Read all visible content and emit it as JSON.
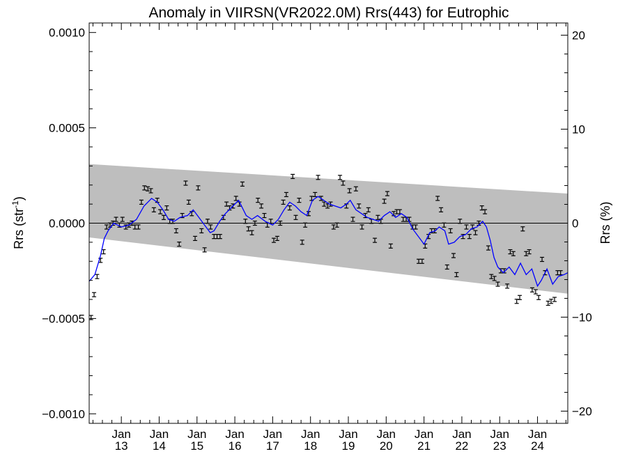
{
  "chart_data": {
    "type": "scatter",
    "title": "Anomaly in VIIRSN(VR2022.0M) Rrs(443) for Eutrophic",
    "ylabel_left": {
      "base": "Rrs (str",
      "sup": "-1",
      "close": ")"
    },
    "ylabel_right": "Rrs (%)",
    "xlim": [
      2012.15,
      2024.8
    ],
    "ylim": [
      -0.00105,
      0.00105
    ],
    "ylim_right": [
      -21.3,
      21.3
    ],
    "x_ticks": [
      {
        "x": 2013.0,
        "month": "Jan",
        "year": "13"
      },
      {
        "x": 2014.0,
        "month": "Jan",
        "year": "14"
      },
      {
        "x": 2015.0,
        "month": "Jan",
        "year": "15"
      },
      {
        "x": 2016.0,
        "month": "Jan",
        "year": "16"
      },
      {
        "x": 2017.0,
        "month": "Jan",
        "year": "17"
      },
      {
        "x": 2018.0,
        "month": "Jan",
        "year": "18"
      },
      {
        "x": 2019.0,
        "month": "Jan",
        "year": "19"
      },
      {
        "x": 2020.0,
        "month": "Jan",
        "year": "20"
      },
      {
        "x": 2021.0,
        "month": "Jan",
        "year": "21"
      },
      {
        "x": 2022.0,
        "month": "Jan",
        "year": "22"
      },
      {
        "x": 2023.0,
        "month": "Jan",
        "year": "23"
      },
      {
        "x": 2024.0,
        "month": "Jan",
        "year": "24"
      }
    ],
    "y_ticks_left": [
      {
        "value": 0.001,
        "label": "0.0010"
      },
      {
        "value": 0.0005,
        "label": "0.0005"
      },
      {
        "value": 0.0,
        "label": "0.0000"
      },
      {
        "value": -0.0005,
        "label": "−0.0005"
      },
      {
        "value": -0.001,
        "label": "−0.0010"
      }
    ],
    "y_ticks_right": [
      {
        "value": 20,
        "label": "20"
      },
      {
        "value": 10,
        "label": "10"
      },
      {
        "value": 0,
        "label": "0"
      },
      {
        "value": -10,
        "label": "−10"
      },
      {
        "value": -20,
        "label": "−20"
      }
    ],
    "colors": {
      "band": "#bebebe",
      "line": "#0000ff",
      "points": "#000000",
      "zero": "#000000"
    },
    "band": {
      "x": [
        2012.15,
        2024.8
      ],
      "upper": [
        0.00031,
        0.000155
      ],
      "lower": [
        -7.5e-05,
        -0.00037
      ]
    },
    "zero_line": 0.0,
    "points": [
      {
        "x": 2012.2,
        "y": -0.000495
      },
      {
        "x": 2012.28,
        "y": -0.000375
      },
      {
        "x": 2012.36,
        "y": -0.00028
      },
      {
        "x": 2012.45,
        "y": -0.000195
      },
      {
        "x": 2012.53,
        "y": -0.00015
      },
      {
        "x": 2012.61,
        "y": -2e-05
      },
      {
        "x": 2012.7,
        "y": -1e-05
      },
      {
        "x": 2012.78,
        "y": 0.0
      },
      {
        "x": 2012.86,
        "y": 2e-05
      },
      {
        "x": 2012.95,
        "y": -1e-05
      },
      {
        "x": 2013.03,
        "y": 2e-05
      },
      {
        "x": 2013.12,
        "y": -2e-05
      },
      {
        "x": 2013.2,
        "y": -1e-05
      },
      {
        "x": 2013.28,
        "y": 0.0
      },
      {
        "x": 2013.36,
        "y": -2e-05
      },
      {
        "x": 2013.45,
        "y": -2e-05
      },
      {
        "x": 2013.53,
        "y": 0.00011
      },
      {
        "x": 2013.61,
        "y": 0.000185
      },
      {
        "x": 2013.7,
        "y": 0.00018
      },
      {
        "x": 2013.78,
        "y": 0.00017
      },
      {
        "x": 2013.86,
        "y": 7e-05
      },
      {
        "x": 2013.95,
        "y": 0.00012
      },
      {
        "x": 2014.03,
        "y": 6e-05
      },
      {
        "x": 2014.12,
        "y": 3e-05
      },
      {
        "x": 2014.2,
        "y": 8e-05
      },
      {
        "x": 2014.28,
        "y": 1e-05
      },
      {
        "x": 2014.36,
        "y": 1e-05
      },
      {
        "x": 2014.45,
        "y": -4e-05
      },
      {
        "x": 2014.53,
        "y": -0.00011
      },
      {
        "x": 2014.61,
        "y": 4e-05
      },
      {
        "x": 2014.7,
        "y": 0.00021
      },
      {
        "x": 2014.78,
        "y": 0.00011
      },
      {
        "x": 2014.86,
        "y": 5e-05
      },
      {
        "x": 2014.95,
        "y": -8e-05
      },
      {
        "x": 2015.03,
        "y": 0.000185
      },
      {
        "x": 2015.12,
        "y": -4e-05
      },
      {
        "x": 2015.2,
        "y": -0.00014
      },
      {
        "x": 2015.28,
        "y": 1e-05
      },
      {
        "x": 2015.36,
        "y": -2e-05
      },
      {
        "x": 2015.45,
        "y": -7e-05
      },
      {
        "x": 2015.53,
        "y": -7e-05
      },
      {
        "x": 2015.61,
        "y": -7e-05
      },
      {
        "x": 2015.7,
        "y": 3e-05
      },
      {
        "x": 2015.78,
        "y": 0.0001
      },
      {
        "x": 2015.86,
        "y": 8e-05
      },
      {
        "x": 2015.95,
        "y": 9e-05
      },
      {
        "x": 2016.03,
        "y": 0.00013
      },
      {
        "x": 2016.12,
        "y": 0.0001
      },
      {
        "x": 2016.2,
        "y": 0.000205
      },
      {
        "x": 2016.28,
        "y": 1e-05
      },
      {
        "x": 2016.36,
        "y": -3e-05
      },
      {
        "x": 2016.45,
        "y": -5e-05
      },
      {
        "x": 2016.53,
        "y": 0.0
      },
      {
        "x": 2016.61,
        "y": 0.00012
      },
      {
        "x": 2016.7,
        "y": 9e-05
      },
      {
        "x": 2016.78,
        "y": 4e-05
      },
      {
        "x": 2016.86,
        "y": -1e-05
      },
      {
        "x": 2016.95,
        "y": 1e-05
      },
      {
        "x": 2017.03,
        "y": -9e-05
      },
      {
        "x": 2017.12,
        "y": -8e-05
      },
      {
        "x": 2017.2,
        "y": 0.0
      },
      {
        "x": 2017.28,
        "y": 0.00011
      },
      {
        "x": 2017.36,
        "y": 0.00015
      },
      {
        "x": 2017.45,
        "y": 8e-05
      },
      {
        "x": 2017.53,
        "y": 0.000245
      },
      {
        "x": 2017.61,
        "y": 3e-05
      },
      {
        "x": 2017.7,
        "y": 0.00012
      },
      {
        "x": 2017.78,
        "y": -0.0001
      },
      {
        "x": 2017.86,
        "y": -1e-05
      },
      {
        "x": 2017.95,
        "y": 5e-05
      },
      {
        "x": 2018.03,
        "y": 0.00013
      },
      {
        "x": 2018.12,
        "y": 0.00015
      },
      {
        "x": 2018.2,
        "y": 0.00024
      },
      {
        "x": 2018.28,
        "y": 0.00013
      },
      {
        "x": 2018.36,
        "y": 0.0001
      },
      {
        "x": 2018.45,
        "y": 9e-05
      },
      {
        "x": 2018.53,
        "y": 0.0001
      },
      {
        "x": 2018.61,
        "y": -2e-05
      },
      {
        "x": 2018.7,
        "y": -1e-05
      },
      {
        "x": 2018.78,
        "y": 0.00024
      },
      {
        "x": 2018.86,
        "y": 0.00021
      },
      {
        "x": 2018.95,
        "y": 9e-05
      },
      {
        "x": 2019.03,
        "y": 0.00017
      },
      {
        "x": 2019.12,
        "y": 2e-05
      },
      {
        "x": 2019.2,
        "y": 0.00018
      },
      {
        "x": 2019.28,
        "y": 9e-05
      },
      {
        "x": 2019.36,
        "y": -2e-05
      },
      {
        "x": 2019.45,
        "y": 4e-05
      },
      {
        "x": 2019.53,
        "y": 7e-05
      },
      {
        "x": 2019.61,
        "y": 1e-05
      },
      {
        "x": 2019.7,
        "y": -9e-05
      },
      {
        "x": 2019.78,
        "y": 3e-05
      },
      {
        "x": 2019.86,
        "y": 1e-05
      },
      {
        "x": 2019.95,
        "y": 0.000115
      },
      {
        "x": 2020.03,
        "y": 0.000155
      },
      {
        "x": 2020.12,
        "y": -0.00012
      },
      {
        "x": 2020.2,
        "y": 5e-05
      },
      {
        "x": 2020.28,
        "y": 6e-05
      },
      {
        "x": 2020.36,
        "y": 6e-05
      },
      {
        "x": 2020.45,
        "y": 2e-05
      },
      {
        "x": 2020.53,
        "y": 2e-05
      },
      {
        "x": 2020.61,
        "y": 2e-05
      },
      {
        "x": 2020.7,
        "y": -2e-05
      },
      {
        "x": 2020.78,
        "y": -2e-05
      },
      {
        "x": 2020.86,
        "y": -0.0002
      },
      {
        "x": 2020.95,
        "y": -0.0002
      },
      {
        "x": 2021.03,
        "y": -0.00012
      },
      {
        "x": 2021.12,
        "y": -7e-05
      },
      {
        "x": 2021.2,
        "y": -4e-05
      },
      {
        "x": 2021.28,
        "y": -4e-05
      },
      {
        "x": 2021.36,
        "y": 0.00013
      },
      {
        "x": 2021.45,
        "y": 7e-05
      },
      {
        "x": 2021.53,
        "y": -1e-05
      },
      {
        "x": 2021.61,
        "y": -0.00023
      },
      {
        "x": 2021.7,
        "y": -4e-05
      },
      {
        "x": 2021.78,
        "y": -0.00017
      },
      {
        "x": 2021.86,
        "y": -0.00027
      },
      {
        "x": 2021.95,
        "y": 1e-05
      },
      {
        "x": 2022.03,
        "y": -7e-05
      },
      {
        "x": 2022.12,
        "y": -2e-05
      },
      {
        "x": 2022.2,
        "y": -7e-05
      },
      {
        "x": 2022.28,
        "y": -2e-05
      },
      {
        "x": 2022.36,
        "y": -5e-05
      },
      {
        "x": 2022.45,
        "y": 0.0
      },
      {
        "x": 2022.53,
        "y": 8e-05
      },
      {
        "x": 2022.61,
        "y": 6e-05
      },
      {
        "x": 2022.7,
        "y": -0.00013
      },
      {
        "x": 2022.78,
        "y": -0.00028
      },
      {
        "x": 2022.86,
        "y": -0.00029
      },
      {
        "x": 2022.95,
        "y": -0.00032
      },
      {
        "x": 2023.03,
        "y": -0.00025
      },
      {
        "x": 2023.12,
        "y": -0.00025
      },
      {
        "x": 2023.2,
        "y": -0.00033
      },
      {
        "x": 2023.28,
        "y": -0.00015
      },
      {
        "x": 2023.36,
        "y": -0.00016
      },
      {
        "x": 2023.45,
        "y": -0.00041
      },
      {
        "x": 2023.53,
        "y": -0.00039
      },
      {
        "x": 2023.61,
        "y": -3e-05
      },
      {
        "x": 2023.7,
        "y": -0.00016
      },
      {
        "x": 2023.78,
        "y": -0.00015
      },
      {
        "x": 2023.86,
        "y": -0.00035
      },
      {
        "x": 2023.95,
        "y": -0.00036
      },
      {
        "x": 2024.03,
        "y": -0.00039
      },
      {
        "x": 2024.12,
        "y": -0.00019
      },
      {
        "x": 2024.2,
        "y": -0.00026
      },
      {
        "x": 2024.28,
        "y": -0.00042
      },
      {
        "x": 2024.36,
        "y": -0.00041
      },
      {
        "x": 2024.45,
        "y": -0.0004
      },
      {
        "x": 2024.53,
        "y": -0.00026
      },
      {
        "x": 2024.61,
        "y": -0.00026
      }
    ],
    "smooth_line": [
      {
        "x": 2012.15,
        "y": -0.000305
      },
      {
        "x": 2012.3,
        "y": -0.00027
      },
      {
        "x": 2012.45,
        "y": -0.00017
      },
      {
        "x": 2012.55,
        "y": -8e-05
      },
      {
        "x": 2012.65,
        "y": -4e-05
      },
      {
        "x": 2012.8,
        "y": 0.0
      },
      {
        "x": 2013.0,
        "y": -2e-05
      },
      {
        "x": 2013.2,
        "y": -1e-05
      },
      {
        "x": 2013.4,
        "y": 2e-05
      },
      {
        "x": 2013.6,
        "y": 9e-05
      },
      {
        "x": 2013.8,
        "y": 0.00013
      },
      {
        "x": 2013.95,
        "y": 0.00011
      },
      {
        "x": 2014.1,
        "y": 7e-05
      },
      {
        "x": 2014.25,
        "y": 2e-05
      },
      {
        "x": 2014.4,
        "y": 1e-05
      },
      {
        "x": 2014.55,
        "y": 3e-05
      },
      {
        "x": 2014.75,
        "y": 4e-05
      },
      {
        "x": 2014.9,
        "y": 7e-05
      },
      {
        "x": 2015.05,
        "y": 3e-05
      },
      {
        "x": 2015.2,
        "y": -1e-05
      },
      {
        "x": 2015.35,
        "y": -5e-05
      },
      {
        "x": 2015.45,
        "y": -4e-05
      },
      {
        "x": 2015.6,
        "y": 1e-05
      },
      {
        "x": 2015.75,
        "y": 5e-05
      },
      {
        "x": 2015.95,
        "y": 9e-05
      },
      {
        "x": 2016.1,
        "y": 0.00012
      },
      {
        "x": 2016.3,
        "y": 4e-05
      },
      {
        "x": 2016.45,
        "y": 2e-05
      },
      {
        "x": 2016.6,
        "y": 4e-05
      },
      {
        "x": 2016.8,
        "y": 1e-05
      },
      {
        "x": 2017.0,
        "y": -1e-05
      },
      {
        "x": 2017.15,
        "y": 2e-05
      },
      {
        "x": 2017.3,
        "y": 7e-05
      },
      {
        "x": 2017.45,
        "y": 0.00011
      },
      {
        "x": 2017.6,
        "y": 9e-05
      },
      {
        "x": 2017.75,
        "y": 6e-05
      },
      {
        "x": 2017.9,
        "y": 4e-05
      },
      {
        "x": 2018.05,
        "y": 0.00012
      },
      {
        "x": 2018.2,
        "y": 0.00014
      },
      {
        "x": 2018.35,
        "y": 0.00012
      },
      {
        "x": 2018.5,
        "y": 0.0001
      },
      {
        "x": 2018.65,
        "y": 9e-05
      },
      {
        "x": 2018.8,
        "y": 8e-05
      },
      {
        "x": 2018.95,
        "y": 0.0001
      },
      {
        "x": 2019.05,
        "y": 0.00012
      },
      {
        "x": 2019.2,
        "y": 7e-05
      },
      {
        "x": 2019.35,
        "y": 5e-05
      },
      {
        "x": 2019.5,
        "y": 3e-05
      },
      {
        "x": 2019.65,
        "y": 2e-05
      },
      {
        "x": 2019.8,
        "y": 1e-05
      },
      {
        "x": 2019.95,
        "y": 4e-05
      },
      {
        "x": 2020.1,
        "y": 6e-05
      },
      {
        "x": 2020.25,
        "y": 3e-05
      },
      {
        "x": 2020.4,
        "y": 5e-05
      },
      {
        "x": 2020.55,
        "y": 3e-05
      },
      {
        "x": 2020.7,
        "y": -3e-05
      },
      {
        "x": 2020.85,
        "y": -7e-05
      },
      {
        "x": 2021.0,
        "y": -0.00011
      },
      {
        "x": 2021.15,
        "y": -5e-05
      },
      {
        "x": 2021.3,
        "y": -4e-05
      },
      {
        "x": 2021.4,
        "y": -2e-05
      },
      {
        "x": 2021.55,
        "y": -4e-05
      },
      {
        "x": 2021.65,
        "y": -0.00011
      },
      {
        "x": 2021.8,
        "y": -0.0001
      },
      {
        "x": 2021.95,
        "y": -7e-05
      },
      {
        "x": 2022.1,
        "y": -6e-05
      },
      {
        "x": 2022.25,
        "y": -3e-05
      },
      {
        "x": 2022.4,
        "y": -2e-05
      },
      {
        "x": 2022.55,
        "y": 1e-05
      },
      {
        "x": 2022.65,
        "y": -2e-05
      },
      {
        "x": 2022.75,
        "y": -9e-05
      },
      {
        "x": 2022.85,
        "y": -0.00018
      },
      {
        "x": 2022.95,
        "y": -0.00023
      },
      {
        "x": 2023.1,
        "y": -0.00026
      },
      {
        "x": 2023.25,
        "y": -0.00023
      },
      {
        "x": 2023.4,
        "y": -0.00027
      },
      {
        "x": 2023.55,
        "y": -0.00021
      },
      {
        "x": 2023.7,
        "y": -0.00027
      },
      {
        "x": 2023.85,
        "y": -0.00024
      },
      {
        "x": 2024.0,
        "y": -0.00033
      },
      {
        "x": 2024.1,
        "y": -0.0003
      },
      {
        "x": 2024.25,
        "y": -0.00024
      },
      {
        "x": 2024.4,
        "y": -0.00032
      },
      {
        "x": 2024.55,
        "y": -0.00028
      },
      {
        "x": 2024.7,
        "y": -0.00027
      },
      {
        "x": 2024.8,
        "y": -0.00026
      }
    ]
  }
}
